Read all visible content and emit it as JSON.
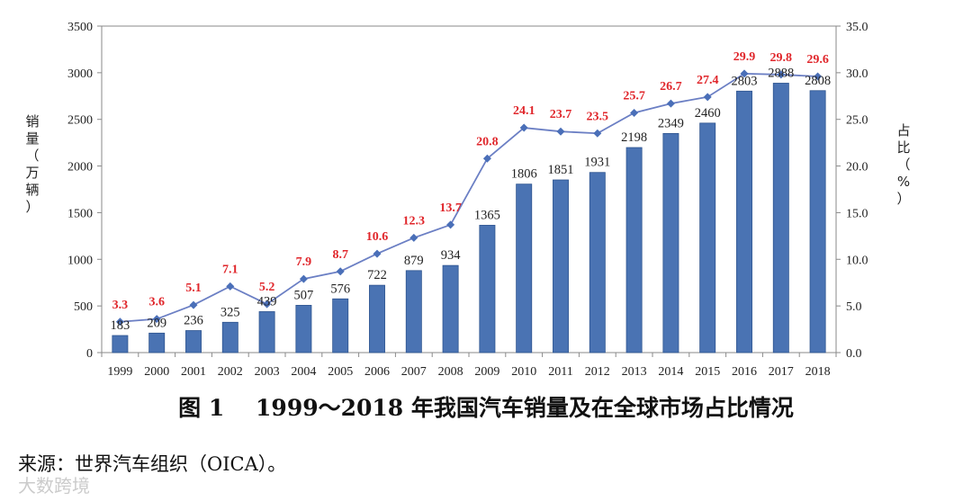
{
  "chart_data": {
    "type": "bar",
    "title": "图 1    1999～2018 年我国汽车销量及在全球市场占比情况",
    "ylabel_left": "销量（万辆）",
    "ylabel_right": "占比（%）",
    "categories": [
      "1999",
      "2000",
      "2001",
      "2002",
      "2003",
      "2004",
      "2005",
      "2006",
      "2007",
      "2008",
      "2009",
      "2010",
      "2011",
      "2012",
      "2013",
      "2014",
      "2015",
      "2016",
      "2017",
      "2018"
    ],
    "series": [
      {
        "name": "销量（万辆）",
        "type": "bar",
        "axis": "left",
        "values": [
          183,
          209,
          236,
          325,
          439,
          507,
          576,
          722,
          879,
          934,
          1365,
          1806,
          1851,
          1931,
          2198,
          2349,
          2460,
          2803,
          2888,
          2808
        ]
      },
      {
        "name": "占比（%）",
        "type": "line",
        "axis": "right",
        "values": [
          3.3,
          3.6,
          5.1,
          7.1,
          5.2,
          7.9,
          8.7,
          10.6,
          12.3,
          13.7,
          20.8,
          24.1,
          23.7,
          23.5,
          25.7,
          26.7,
          27.4,
          29.9,
          29.8,
          29.6
        ]
      }
    ],
    "ylim_left": [
      0,
      3500
    ],
    "yticks_left": [
      "0",
      "500",
      "1000",
      "1500",
      "2000",
      "2500",
      "3000",
      "3500"
    ],
    "ylim_right": [
      0,
      35
    ],
    "yticks_right": [
      "0.0",
      "5.0",
      "10.0",
      "15.0",
      "20.0",
      "25.0",
      "30.0",
      "35.0"
    ],
    "share_labels": [
      "3.3",
      "3.6",
      "5.1",
      "7.1",
      "5.2",
      "7.9",
      "8.7",
      "10.6",
      "12.3",
      "13.7",
      "20.8",
      "24.1",
      "23.7",
      "23.5",
      "25.7",
      "26.7",
      "27.4",
      "29.9",
      "29.8",
      "29.6"
    ],
    "colors": {
      "bar": "#4a73b3",
      "bar_edge": "#2e548f",
      "line": "#6b7fc4",
      "marker": "#4a6fb8",
      "share_label": "#e0262b"
    }
  },
  "caption": "图 1    1999～2018 年我国汽车销量及在全球市场占比情况",
  "source": "来源：世界汽车组织（OICA）。",
  "watermark": "大数跨境"
}
